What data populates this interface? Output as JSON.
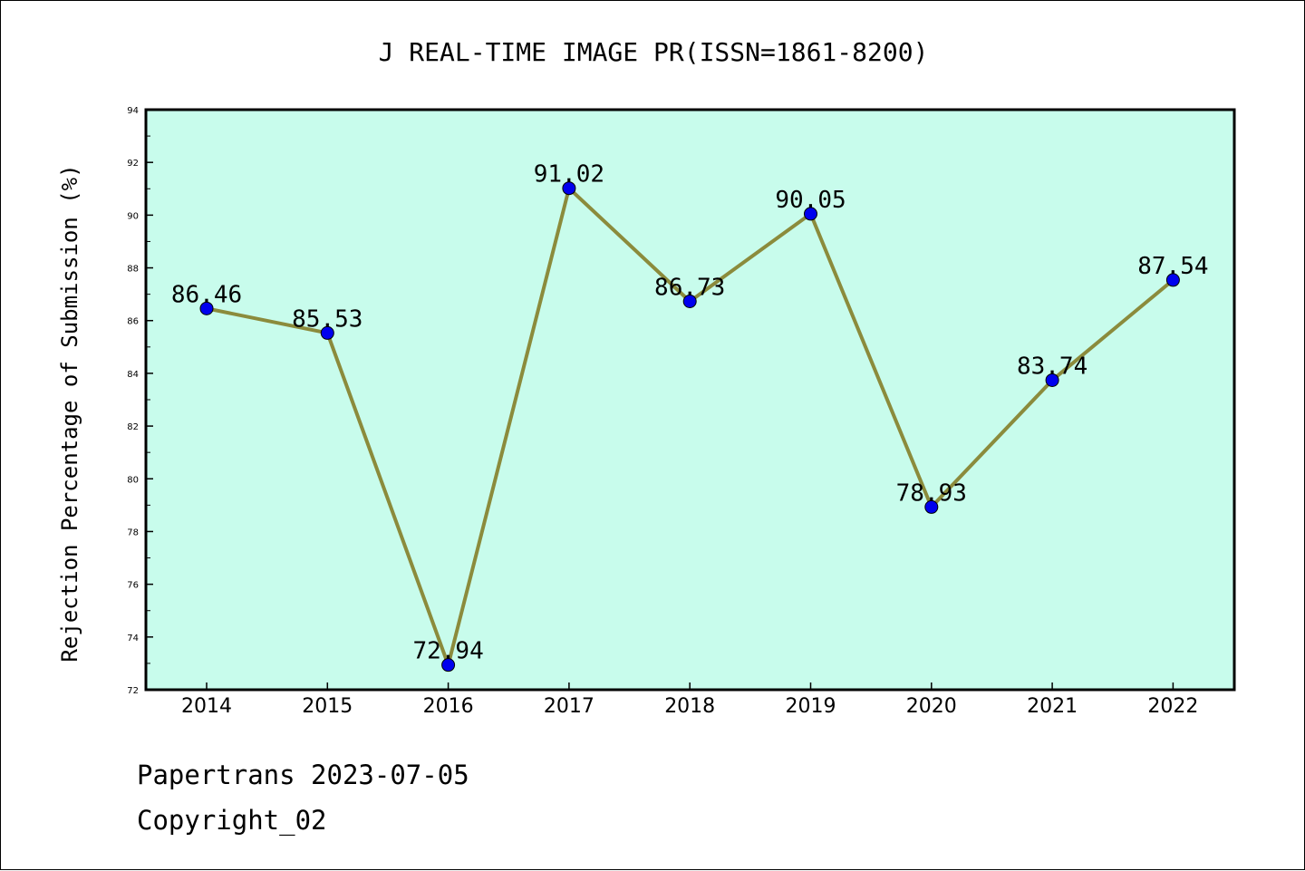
{
  "chart_data": {
    "type": "line",
    "title": "J REAL-TIME IMAGE PR(ISSN=1861-8200)",
    "xlabel": "",
    "ylabel": "Rejection Percentage of Submission (%)",
    "categories": [
      "2014",
      "2015",
      "2016",
      "2017",
      "2018",
      "2019",
      "2020",
      "2021",
      "2022"
    ],
    "series": [
      {
        "values": [
          86.46,
          85.53,
          72.94,
          91.02,
          86.73,
          90.05,
          78.93,
          83.74,
          87.54
        ],
        "labels": [
          "86.46",
          "85.53",
          "72.94",
          "91.02",
          "86.73",
          "90.05",
          "78.93",
          "83.74",
          "87.54"
        ]
      }
    ],
    "ylim": [
      72,
      94
    ],
    "yticks": [
      "72",
      "74",
      "76",
      "78",
      "80",
      "82",
      "84",
      "86",
      "88",
      "90",
      "92",
      "94"
    ],
    "grid": false,
    "colors": {
      "plot_background": "#c8fcec",
      "line": "#8b8b3c",
      "marker": "#0000ee"
    }
  },
  "footer": {
    "source": "Papertrans 2023-07-05",
    "copyright": "Copyright_02"
  }
}
